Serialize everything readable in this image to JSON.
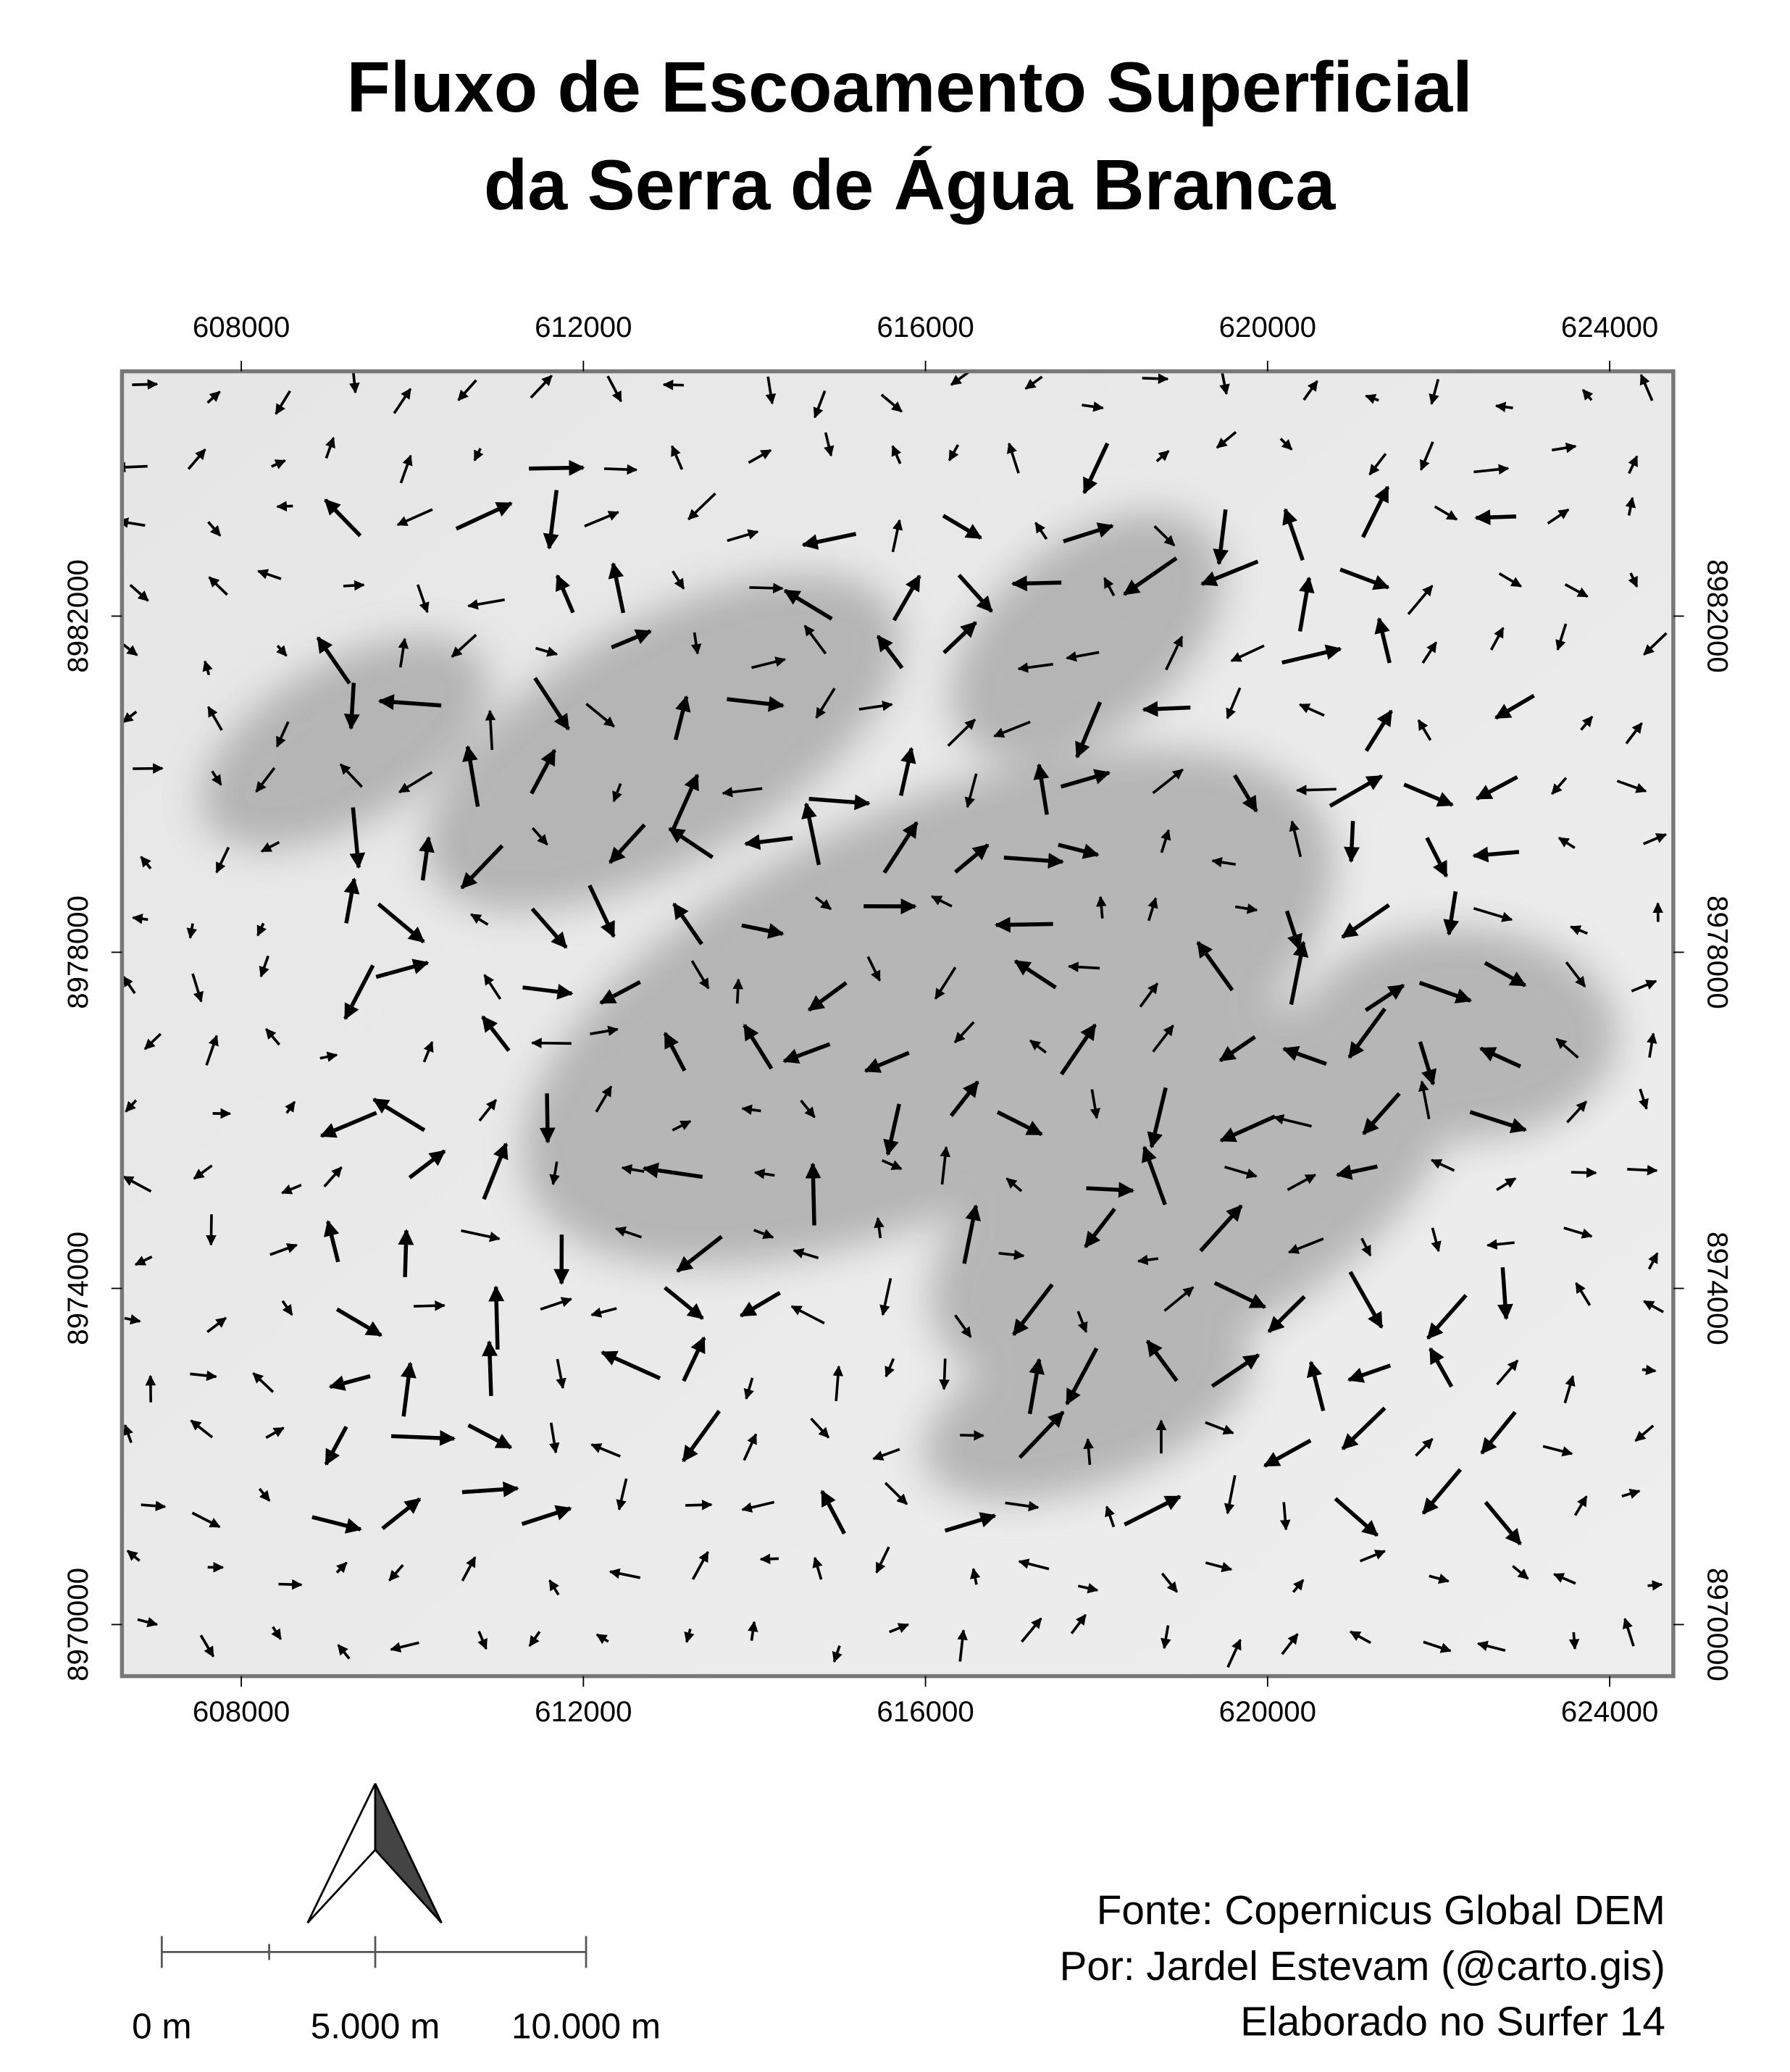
{
  "title": [
    "Fluxo de Escoamento Superficial",
    "da Serra de Água Branca"
  ],
  "map": {
    "xlim": [
      606605,
      624744
    ],
    "ylim": [
      8969386,
      8984913
    ],
    "xticks": [
      608000,
      612000,
      616000,
      620000,
      624000
    ],
    "yticks": [
      8970000,
      8974000,
      8978000,
      8982000
    ]
  },
  "scale_bar": [
    "0 m",
    "5.000 m",
    "10.000 m"
  ],
  "credits": [
    "Fonte: Copernicus Global DEM",
    "Por: Jardel Estevam (@carto.gis)",
    "Elaborado no Surfer 14"
  ]
}
